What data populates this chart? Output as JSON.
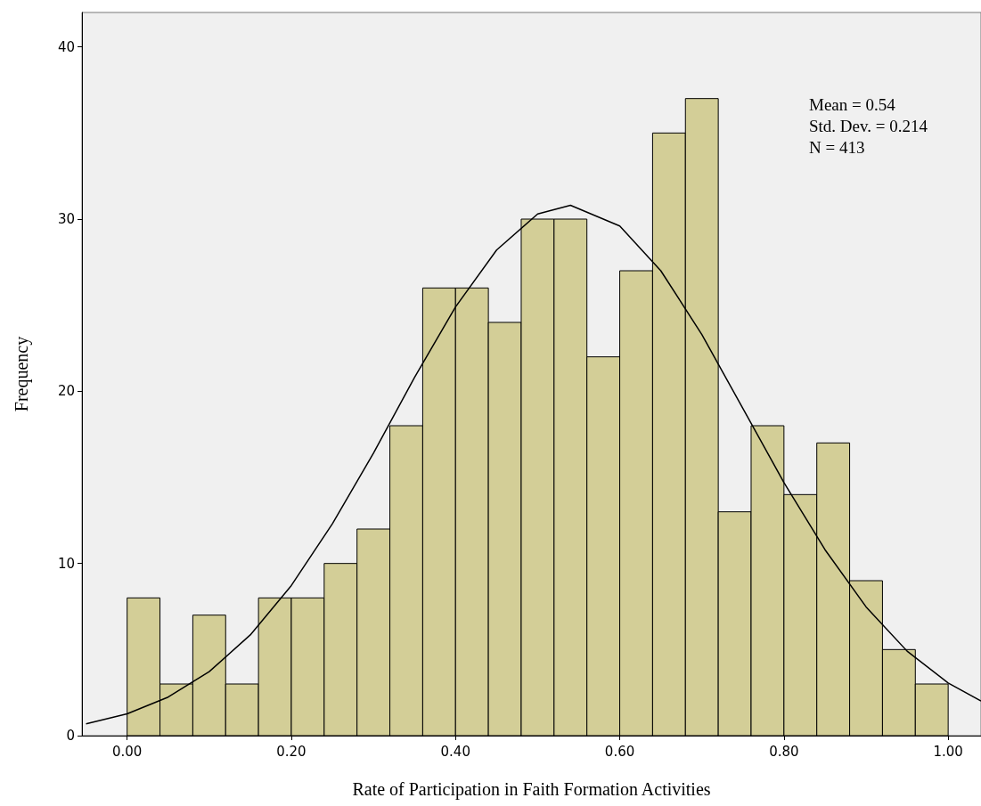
{
  "chart_data": {
    "type": "histogram",
    "xlabel": "Rate of Participation in Faith Formation Activities",
    "ylabel": "Frequency",
    "annotations": [
      "Mean = 0.54",
      "Std. Dev. = 0.214",
      "N = 413"
    ],
    "bins": [
      0,
      0.04,
      0.08,
      0.12,
      0.16,
      0.2,
      0.24,
      0.28,
      0.32,
      0.36,
      0.4,
      0.44,
      0.48,
      0.52,
      0.56,
      0.6,
      0.64,
      0.68,
      0.72,
      0.76,
      0.8,
      0.84,
      0.88,
      0.92,
      0.96,
      1.0
    ],
    "values": [
      8,
      3,
      7,
      3,
      8,
      8,
      10,
      12,
      18,
      26,
      26,
      24,
      30,
      30,
      22,
      27,
      35,
      37,
      13,
      18,
      14,
      17,
      9,
      5,
      3
    ],
    "color": "#d3ce97",
    "series": [
      {
        "type": "line",
        "color": "#000000",
        "x": [
          -0.05,
          0,
          0.05,
          0.1,
          0.15,
          0.2,
          0.25,
          0.3,
          0.35,
          0.4,
          0.45,
          0.5,
          0.54,
          0.6,
          0.65,
          0.7,
          0.75,
          0.8,
          0.85,
          0.9,
          0.95,
          1.0,
          1.04
        ],
        "values": [
          0.69,
          1.27,
          2.24,
          3.72,
          5.85,
          8.72,
          12.3,
          16.4,
          20.8,
          24.9,
          28.2,
          30.3,
          30.8,
          29.6,
          27.0,
          23.3,
          19.0,
          14.7,
          10.8,
          7.48,
          4.91,
          3.06,
          2.01
        ]
      }
    ],
    "marker": "none",
    "line_style": "solid",
    "grid": false,
    "xlim": [
      -0.055,
      1.04
    ],
    "ylim": [
      0,
      42
    ],
    "xticks": [
      {
        "value": 0,
        "label": "0.00"
      },
      {
        "value": 0.2,
        "label": "0.20"
      },
      {
        "value": 0.4,
        "label": "0.40"
      },
      {
        "value": 0.6,
        "label": "0.60"
      },
      {
        "value": 0.8,
        "label": "0.80"
      },
      {
        "value": 1,
        "label": "1.00"
      }
    ],
    "yticks": [
      0,
      10,
      20,
      30,
      40
    ]
  }
}
